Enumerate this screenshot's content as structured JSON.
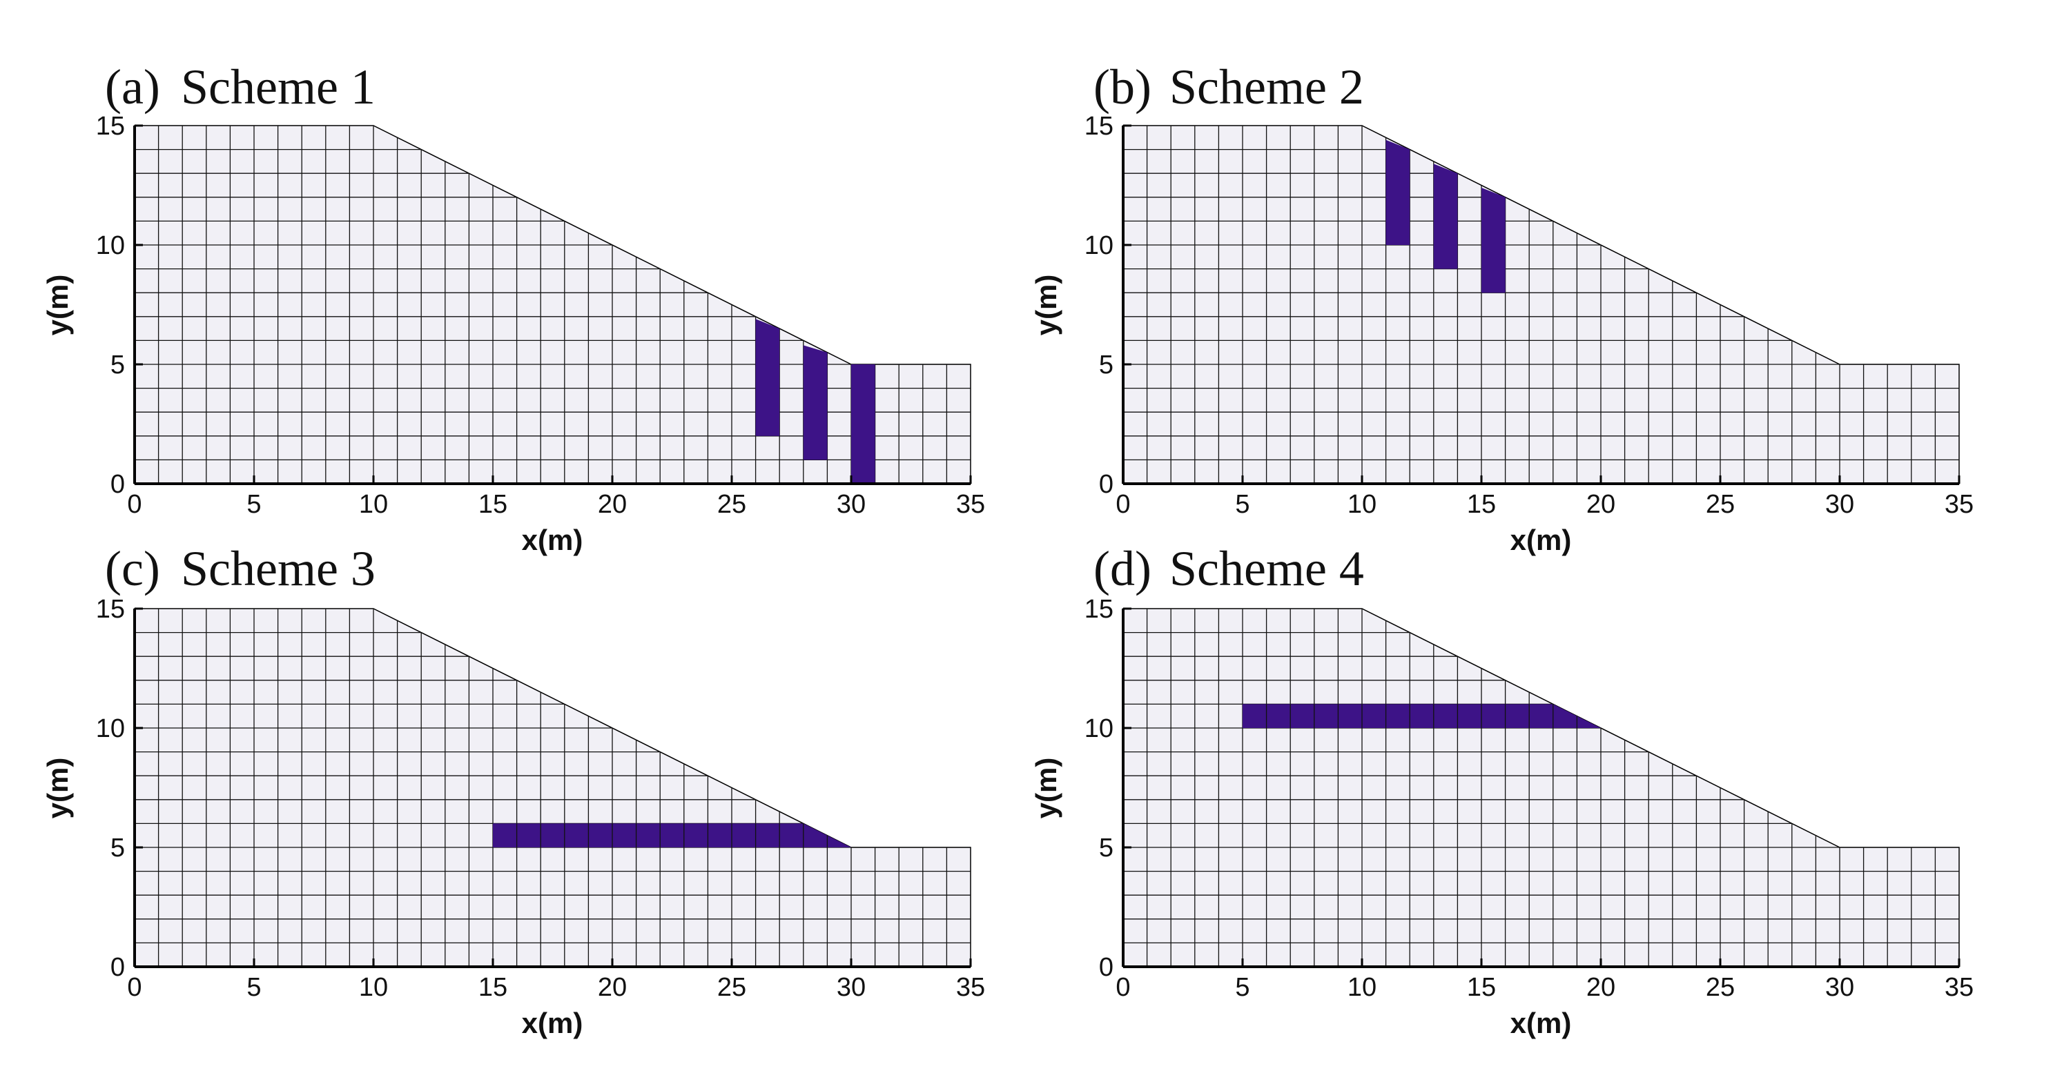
{
  "colors": {
    "block": "#3d1387",
    "soil": "#f1f0f6",
    "grid": "#111111"
  },
  "panels": [
    {
      "id": "a",
      "label": "(a)",
      "scheme": "Scheme 1",
      "xlabel": "x(m)",
      "ylabel": "y(m)",
      "xticks": [
        "0",
        "5",
        "10",
        "15",
        "20",
        "25",
        "30",
        "35"
      ],
      "yticks": [
        "0",
        "5",
        "10",
        "15"
      ]
    },
    {
      "id": "b",
      "label": "(b)",
      "scheme": "Scheme 2",
      "xlabel": "x(m)",
      "ylabel": "y(m)",
      "xticks": [
        "0",
        "5",
        "10",
        "15",
        "20",
        "25",
        "30",
        "35"
      ],
      "yticks": [
        "0",
        "5",
        "10",
        "15"
      ]
    },
    {
      "id": "c",
      "label": "(c)",
      "scheme": "Scheme 3",
      "xlabel": "x(m)",
      "ylabel": "y(m)",
      "xticks": [
        "0",
        "5",
        "10",
        "15",
        "20",
        "25",
        "30",
        "35"
      ],
      "yticks": [
        "0",
        "5",
        "10",
        "15"
      ]
    },
    {
      "id": "d",
      "label": "(d)",
      "scheme": "Scheme 4",
      "xlabel": "x(m)",
      "ylabel": "y(m)",
      "xticks": [
        "0",
        "5",
        "10",
        "15",
        "20",
        "25",
        "30",
        "35"
      ],
      "yticks": [
        "0",
        "5",
        "10",
        "15"
      ]
    }
  ],
  "chart_data": {
    "type": "mesh-diagram",
    "xlim": [
      0,
      35
    ],
    "ylim": [
      0,
      15
    ],
    "slope_profile": [
      [
        0,
        0
      ],
      [
        0,
        15
      ],
      [
        10,
        15
      ],
      [
        30,
        5
      ],
      [
        35,
        5
      ],
      [
        35,
        0
      ]
    ],
    "schemes": [
      {
        "name": "Scheme 1",
        "reinforcement": [
          {
            "x": [
              26,
              27
            ],
            "y": [
              2,
              6.9
            ]
          },
          {
            "x": [
              28,
              29
            ],
            "y": [
              1,
              5.8
            ]
          },
          {
            "x": [
              30,
              31
            ],
            "y": [
              0,
              5
            ]
          }
        ]
      },
      {
        "name": "Scheme 2",
        "reinforcement": [
          {
            "x": [
              11,
              12
            ],
            "y": [
              10,
              14.4
            ]
          },
          {
            "x": [
              13,
              14
            ],
            "y": [
              9,
              13.4
            ]
          },
          {
            "x": [
              15,
              16
            ],
            "y": [
              8,
              12.4
            ]
          }
        ]
      },
      {
        "name": "Scheme 3",
        "reinforcement": [
          {
            "x": [
              15,
              30
            ],
            "y": [
              5,
              6
            ]
          }
        ]
      },
      {
        "name": "Scheme 4",
        "reinforcement": [
          {
            "x": [
              5,
              20
            ],
            "y": [
              10,
              11
            ]
          }
        ]
      }
    ]
  }
}
